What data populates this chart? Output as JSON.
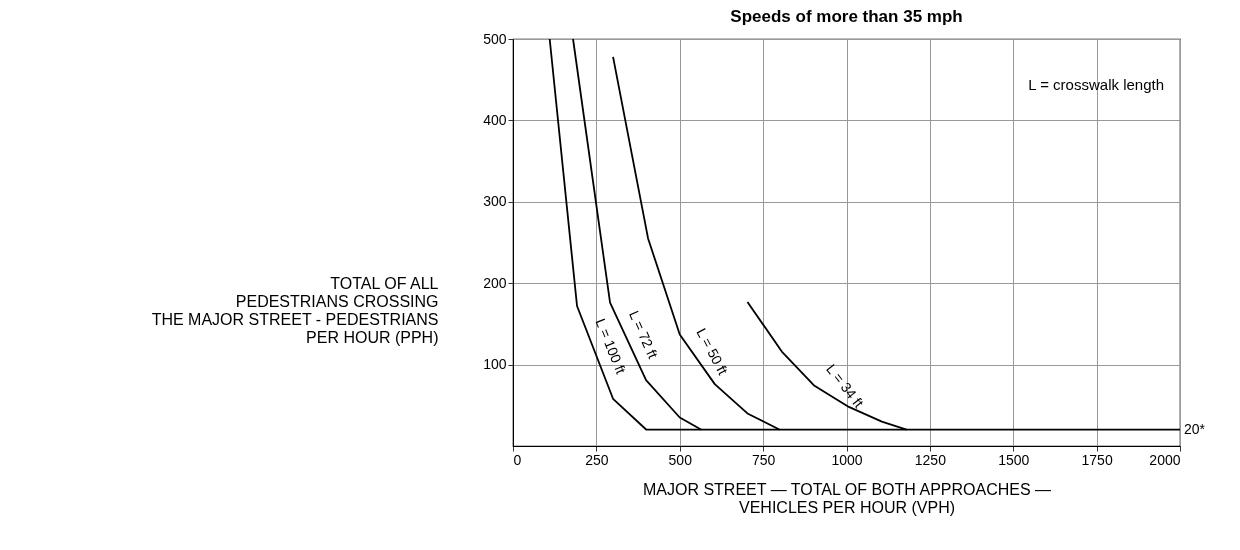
{
  "chart_data": {
    "type": "line",
    "title": "Speeds of more than 35 mph",
    "xlabel": "MAJOR STREET — TOTAL OF BOTH APPROACHES —\nVEHICLES PER HOUR (VPH)",
    "ylabel": "TOTAL OF ALL\nPEDESTRIANS CROSSING\nTHE MAJOR STREET - PEDESTRIANS\nPER HOUR (PPH)",
    "series": [
      {
        "name": "L = 100 ft",
        "color": "#000000",
        "x": [
          110,
          192,
          300,
          400,
          2000
        ],
        "values": [
          500,
          172,
          58,
          20,
          20
        ]
      },
      {
        "name": "L = 72 ft",
        "color": "#000000",
        "x": [
          180,
          291,
          399,
          500,
          565
        ],
        "values": [
          500,
          176,
          81,
          35,
          20
        ]
      },
      {
        "name": "L = 50 ft",
        "color": "#000000",
        "x": [
          300,
          405,
          500,
          605,
          703,
          800
        ],
        "values": [
          478,
          255,
          137,
          76,
          40,
          20
        ]
      },
      {
        "name": "L = 34 ft",
        "color": "#000000",
        "x": [
          703,
          806,
          904,
          1007,
          1106,
          1180
        ],
        "values": [
          177,
          116,
          74,
          48,
          30,
          20
        ]
      }
    ],
    "annotations": [
      "L = crosswalk length",
      {
        "text": "20*",
        "x": 2000,
        "y": 20
      }
    ],
    "xlim": [
      0,
      2000
    ],
    "ylim": [
      0,
      500
    ],
    "xticks": [
      0,
      250,
      500,
      750,
      1000,
      1250,
      1500,
      1750,
      2000
    ],
    "yticks": [
      100,
      200,
      300,
      400,
      500
    ],
    "grid": true,
    "marker": "none",
    "line_style": "solid"
  }
}
